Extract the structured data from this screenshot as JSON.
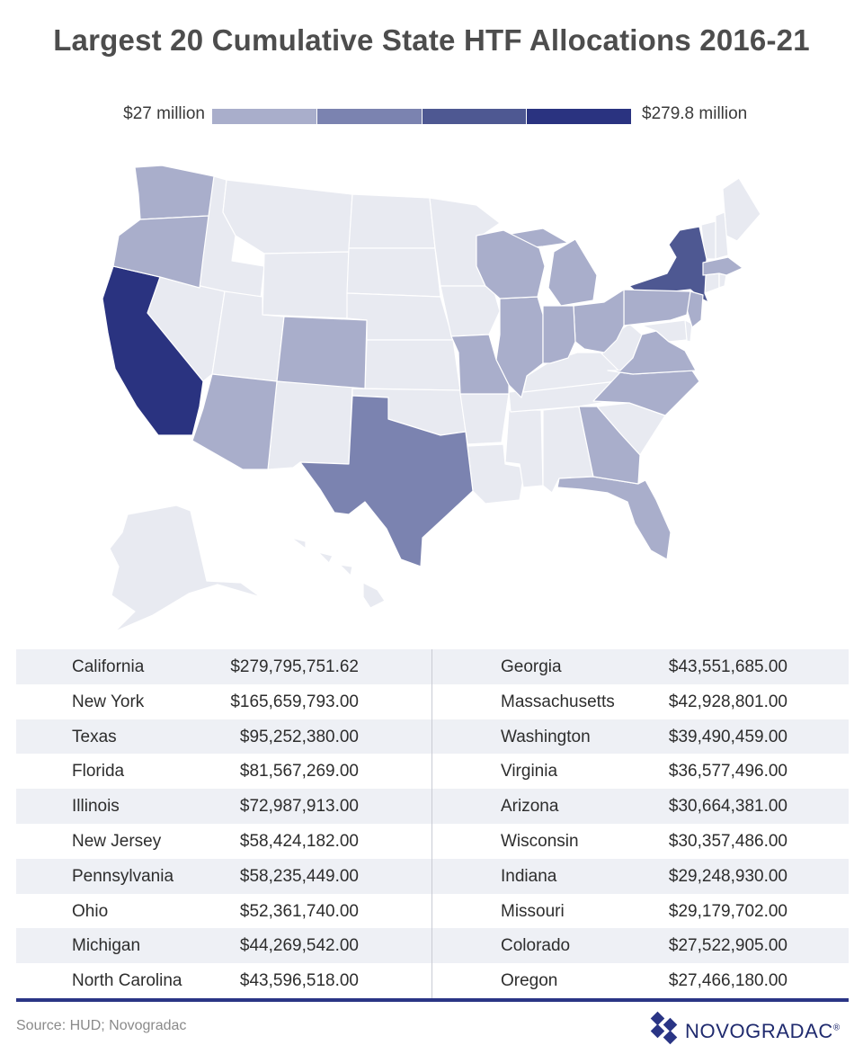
{
  "title": "Largest 20 Cumulative State HTF Allocations 2016-21",
  "legend": {
    "min_label": "$27 million",
    "max_label": "$279.8 million",
    "colors": [
      "#a9aecb",
      "#7b83b0",
      "#4e5892",
      "#2a3380"
    ]
  },
  "map": {
    "base_color": "#e8eaf1",
    "border_color": "#ffffff",
    "highlighted_states": [
      {
        "state": "California",
        "color": "#2a3380"
      },
      {
        "state": "New York",
        "color": "#4e5892"
      },
      {
        "state": "Texas",
        "color": "#7b83b0"
      },
      {
        "state": "Florida",
        "color": "#a9aecb"
      },
      {
        "state": "Illinois",
        "color": "#a9aecb"
      },
      {
        "state": "New Jersey",
        "color": "#a9aecb"
      },
      {
        "state": "Pennsylvania",
        "color": "#a9aecb"
      },
      {
        "state": "Ohio",
        "color": "#a9aecb"
      },
      {
        "state": "Michigan",
        "color": "#a9aecb"
      },
      {
        "state": "North Carolina",
        "color": "#a9aecb"
      },
      {
        "state": "Georgia",
        "color": "#a9aecb"
      },
      {
        "state": "Massachusetts",
        "color": "#a9aecb"
      },
      {
        "state": "Washington",
        "color": "#a9aecb"
      },
      {
        "state": "Virginia",
        "color": "#a9aecb"
      },
      {
        "state": "Arizona",
        "color": "#a9aecb"
      },
      {
        "state": "Wisconsin",
        "color": "#a9aecb"
      },
      {
        "state": "Indiana",
        "color": "#a9aecb"
      },
      {
        "state": "Missouri",
        "color": "#a9aecb"
      },
      {
        "state": "Colorado",
        "color": "#a9aecb"
      },
      {
        "state": "Oregon",
        "color": "#a9aecb"
      }
    ]
  },
  "table": {
    "left": [
      {
        "state": "California",
        "amount": "$279,795,751.62"
      },
      {
        "state": "New York",
        "amount": "$165,659,793.00"
      },
      {
        "state": "Texas",
        "amount": "$95,252,380.00"
      },
      {
        "state": "Florida",
        "amount": "$81,567,269.00"
      },
      {
        "state": "Illinois",
        "amount": "$72,987,913.00"
      },
      {
        "state": "New Jersey",
        "amount": "$58,424,182.00"
      },
      {
        "state": "Pennsylvania",
        "amount": "$58,235,449.00"
      },
      {
        "state": "Ohio",
        "amount": "$52,361,740.00"
      },
      {
        "state": "Michigan",
        "amount": "$44,269,542.00"
      },
      {
        "state": "North Carolina",
        "amount": "$43,596,518.00"
      }
    ],
    "right": [
      {
        "state": "Georgia",
        "amount": "$43,551,685.00"
      },
      {
        "state": "Massachusetts",
        "amount": "$42,928,801.00"
      },
      {
        "state": "Washington",
        "amount": "$39,490,459.00"
      },
      {
        "state": "Virginia",
        "amount": "$36,577,496.00"
      },
      {
        "state": "Arizona",
        "amount": "$30,664,381.00"
      },
      {
        "state": "Wisconsin",
        "amount": "$30,357,486.00"
      },
      {
        "state": "Indiana",
        "amount": "$29,248,930.00"
      },
      {
        "state": "Missouri",
        "amount": "$29,179,702.00"
      },
      {
        "state": "Colorado",
        "amount": "$27,522,905.00"
      },
      {
        "state": "Oregon",
        "amount": "$27,466,180.00"
      }
    ]
  },
  "source": "Source: HUD; Novogradac",
  "logo": {
    "wordmark": "NOVOGRADAC",
    "registered": "®"
  }
}
